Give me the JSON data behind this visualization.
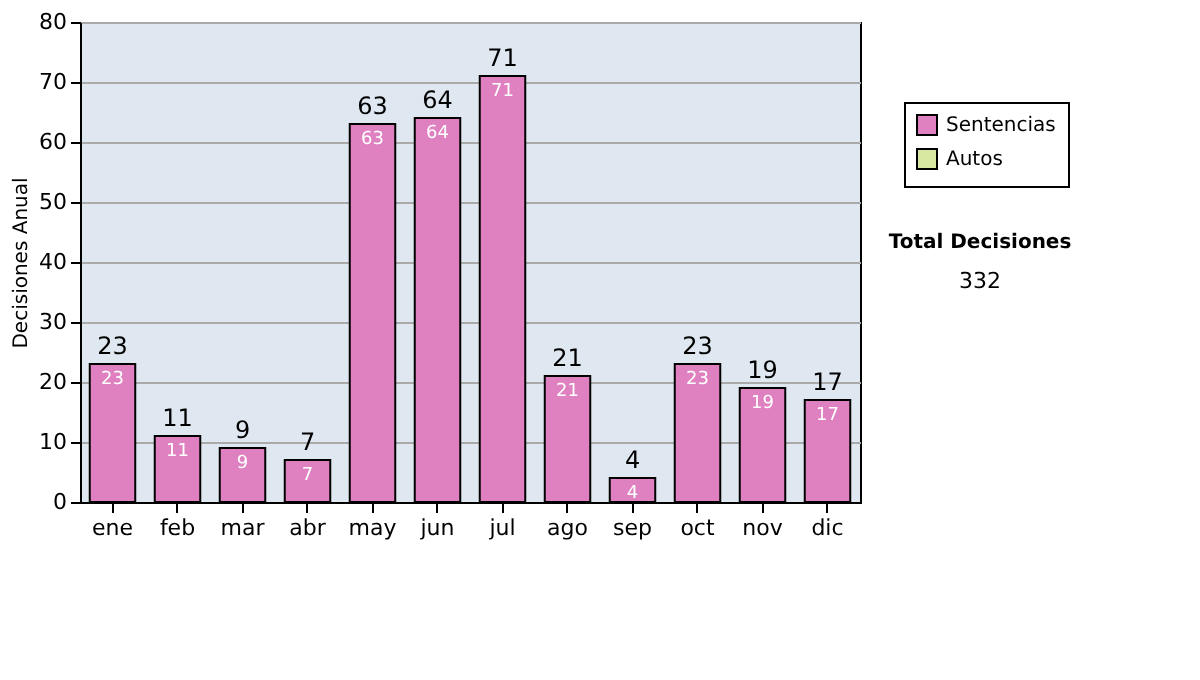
{
  "chart_data": {
    "type": "bar",
    "ylabel": "Decisiones Anual",
    "categories": [
      "ene",
      "feb",
      "mar",
      "abr",
      "may",
      "jun",
      "jul",
      "ago",
      "sep",
      "oct",
      "nov",
      "dic"
    ],
    "series": [
      {
        "name": "Sentencias",
        "color": "#df80c0",
        "values": [
          23,
          11,
          9,
          7,
          63,
          64,
          71,
          21,
          4,
          23,
          19,
          17
        ]
      },
      {
        "name": "Autos",
        "color": "#d8e8a0",
        "values": [
          null,
          null,
          null,
          null,
          null,
          null,
          null,
          null,
          null,
          null,
          null,
          null
        ]
      }
    ],
    "stacked": true,
    "data_labels": true,
    "totals": [
      "23",
      "11",
      "9",
      "7",
      "63",
      "64",
      "71",
      "21",
      "4",
      "23",
      "19",
      "17"
    ],
    "ylim": [
      0,
      80
    ],
    "yticks": [
      0,
      10,
      20,
      30,
      40,
      50,
      60,
      70,
      80
    ],
    "grid": "y",
    "legend": "right",
    "annotations": [
      "Total Decisiones",
      "332"
    ]
  }
}
